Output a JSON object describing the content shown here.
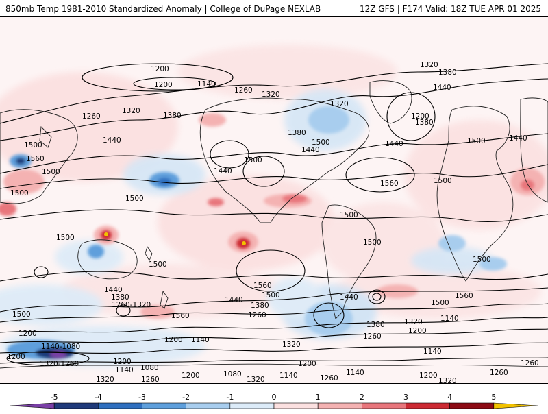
{
  "header": {
    "title": "850mb Temp 1981-2010 Standardized Anomaly | College of DuPage NEXLAB",
    "run_info": "12Z GFS | F174 Valid: 18Z TUE APR 01 2025"
  },
  "colorbar": {
    "ticks": [
      "-5",
      "-4",
      "-3",
      "-2",
      "-1",
      "0",
      "1",
      "2",
      "3",
      "4",
      "5"
    ],
    "colors": [
      "#7a3fa6",
      "#1f3a7a",
      "#2f6fbf",
      "#5e9fdc",
      "#a8cdee",
      "#dcebf8",
      "#fbe0e0",
      "#f4b2b2",
      "#e8767c",
      "#cc2a33",
      "#8c0a14",
      "#f2c200"
    ]
  },
  "contours": {
    "labels": [
      "1200",
      "1140",
      "1260",
      "1320",
      "1380",
      "1440",
      "1500",
      "1560",
      "1080",
      "1320-1260",
      "1140-1080",
      "1380",
      "1260-1320"
    ]
  },
  "colors": {
    "contour": "#000000",
    "coast": "#222222",
    "warm": "#e8767c",
    "cold": "#5e9fdc"
  }
}
